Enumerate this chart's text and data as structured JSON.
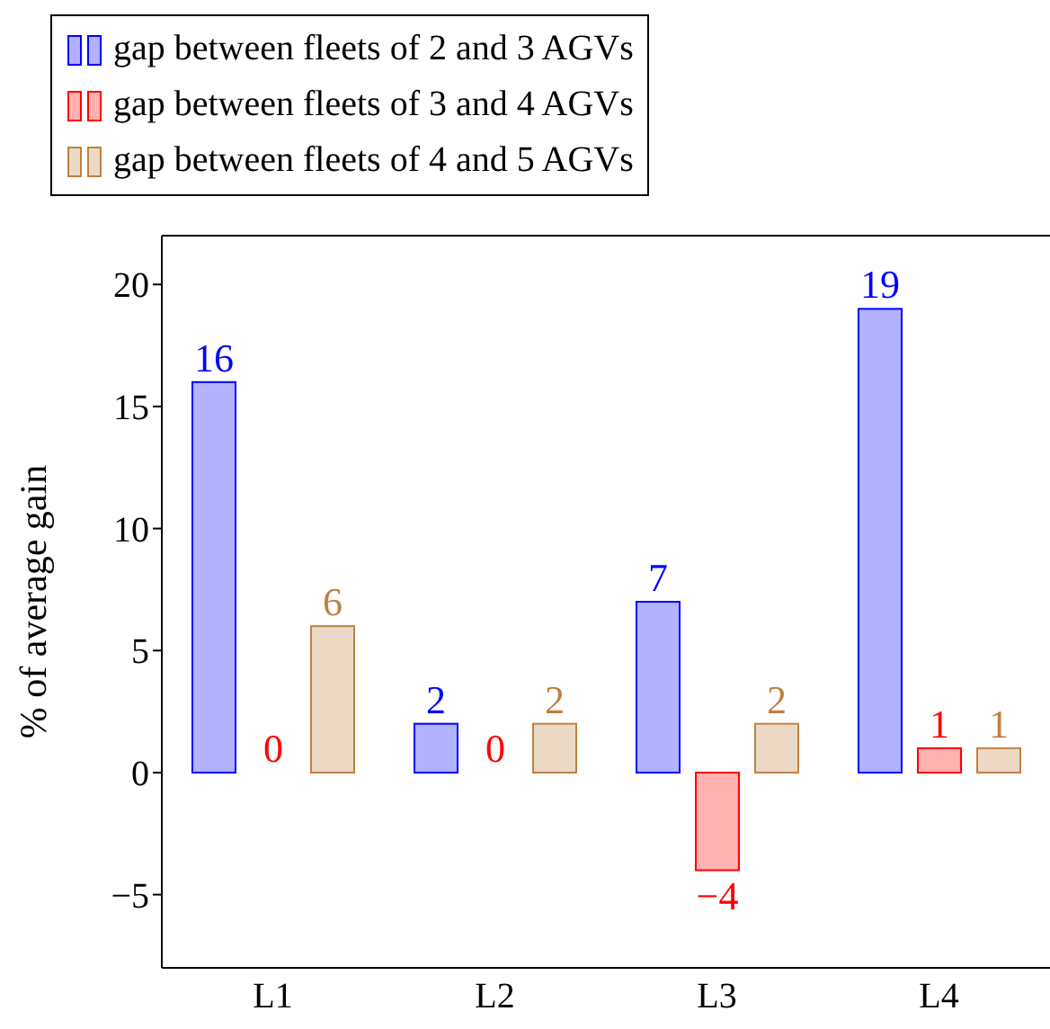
{
  "chart_data": {
    "type": "bar",
    "ylabel": "% of average gain",
    "categories": [
      "L1",
      "L2",
      "L3",
      "L4"
    ],
    "series": [
      {
        "name": "gap between fleets of 2 and 3 AGVs",
        "color": "#0000ff",
        "values": [
          16,
          2,
          7,
          19
        ]
      },
      {
        "name": "gap between fleets of 3 and 4 AGVs",
        "color": "#ff0000",
        "values": [
          0,
          0,
          -4,
          1
        ]
      },
      {
        "name": "gap between fleets of 4 and 5 AGVs",
        "color": "#bf8040",
        "values": [
          6,
          2,
          2,
          1
        ]
      }
    ],
    "ylim": [
      -8,
      22
    ],
    "yticks": [
      -5,
      0,
      5,
      10,
      15,
      20
    ],
    "data_labels": true,
    "legend": "top",
    "grid": false
  }
}
